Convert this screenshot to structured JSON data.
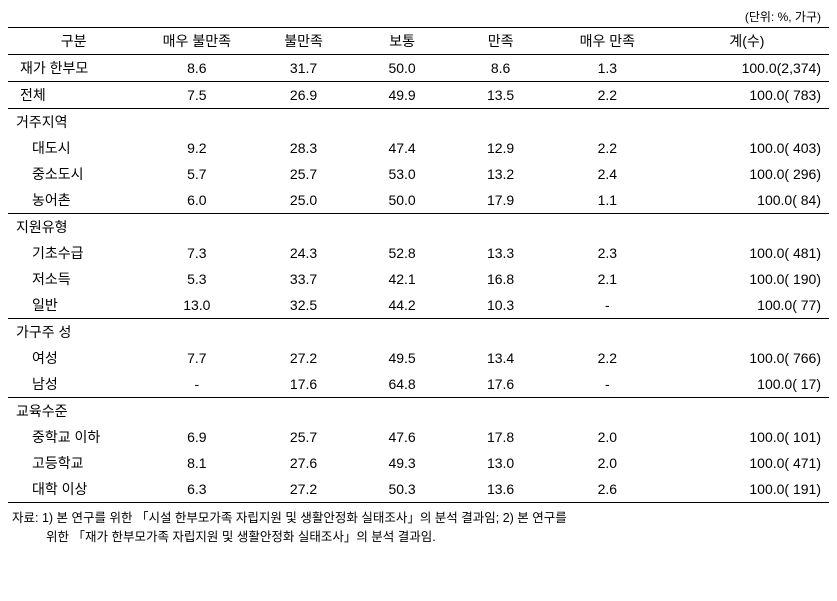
{
  "unit_label": "(단위: %, 가구)",
  "headers": {
    "category": "구분",
    "very_dissatisfied": "매우 불만족",
    "dissatisfied": "불만족",
    "neutral": "보통",
    "satisfied": "만족",
    "very_satisfied": "매우 만족",
    "total": "계(수)"
  },
  "top_rows": [
    {
      "label": "재가 한부모",
      "vd": "8.6",
      "d": "31.7",
      "n": "50.0",
      "s": "8.6",
      "vs": "1.3",
      "total": "100.0(2,374)"
    },
    {
      "label": "전체",
      "vd": "7.5",
      "d": "26.9",
      "n": "49.9",
      "s": "13.5",
      "vs": "2.2",
      "total": "100.0(  783)"
    }
  ],
  "sections": [
    {
      "title": "거주지역",
      "rows": [
        {
          "label": "대도시",
          "vd": "9.2",
          "d": "28.3",
          "n": "47.4",
          "s": "12.9",
          "vs": "2.2",
          "total": "100.0(  403)"
        },
        {
          "label": "중소도시",
          "vd": "5.7",
          "d": "25.7",
          "n": "53.0",
          "s": "13.2",
          "vs": "2.4",
          "total": "100.0(  296)"
        },
        {
          "label": "농어촌",
          "vd": "6.0",
          "d": "25.0",
          "n": "50.0",
          "s": "17.9",
          "vs": "1.1",
          "total": "100.0(    84)"
        }
      ]
    },
    {
      "title": "지원유형",
      "rows": [
        {
          "label": "기초수급",
          "vd": "7.3",
          "d": "24.3",
          "n": "52.8",
          "s": "13.3",
          "vs": "2.3",
          "total": "100.0(  481)"
        },
        {
          "label": "저소득",
          "vd": "5.3",
          "d": "33.7",
          "n": "42.1",
          "s": "16.8",
          "vs": "2.1",
          "total": "100.0(  190)"
        },
        {
          "label": "일반",
          "vd": "13.0",
          "d": "32.5",
          "n": "44.2",
          "s": "10.3",
          "vs": "-",
          "total": "100.0(    77)"
        }
      ]
    },
    {
      "title": "가구주 성",
      "rows": [
        {
          "label": "여성",
          "vd": "7.7",
          "d": "27.2",
          "n": "49.5",
          "s": "13.4",
          "vs": "2.2",
          "total": "100.0(  766)"
        },
        {
          "label": "남성",
          "vd": "-",
          "d": "17.6",
          "n": "64.8",
          "s": "17.6",
          "vs": "-",
          "total": "100.0(    17)"
        }
      ]
    },
    {
      "title": "교육수준",
      "rows": [
        {
          "label": "중학교 이하",
          "vd": "6.9",
          "d": "25.7",
          "n": "47.6",
          "s": "17.8",
          "vs": "2.0",
          "total": "100.0(  101)"
        },
        {
          "label": "고등학교",
          "vd": "8.1",
          "d": "27.6",
          "n": "49.3",
          "s": "13.0",
          "vs": "2.0",
          "total": "100.0(  471)"
        },
        {
          "label": "대학 이상",
          "vd": "6.3",
          "d": "27.2",
          "n": "50.3",
          "s": "13.6",
          "vs": "2.6",
          "total": "100.0(  191)"
        }
      ]
    }
  ],
  "footnote": {
    "line1": "자료: 1) 본 연구를 위한 「시설 한부모가족 자립지원 및 생활안정화 실태조사」의 분석 결과임; 2) 본 연구를",
    "line2": "위한 「재가 한부모가족 자립지원 및 생활안정화 실태조사」의 분석 결과임."
  },
  "col_widths": {
    "c0": "16%",
    "c1": "14%",
    "c2": "12%",
    "c3": "12%",
    "c4": "12%",
    "c5": "14%",
    "c6": "20%"
  }
}
